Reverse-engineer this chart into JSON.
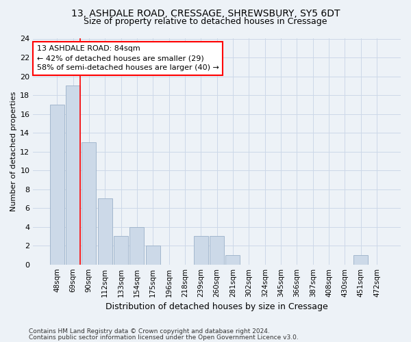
{
  "title1": "13, ASHDALE ROAD, CRESSAGE, SHREWSBURY, SY5 6DT",
  "title2": "Size of property relative to detached houses in Cressage",
  "xlabel": "Distribution of detached houses by size in Cressage",
  "ylabel": "Number of detached properties",
  "categories": [
    "48sqm",
    "69sqm",
    "90sqm",
    "112sqm",
    "133sqm",
    "154sqm",
    "175sqm",
    "196sqm",
    "218sqm",
    "239sqm",
    "260sqm",
    "281sqm",
    "302sqm",
    "324sqm",
    "345sqm",
    "366sqm",
    "387sqm",
    "408sqm",
    "430sqm",
    "451sqm",
    "472sqm"
  ],
  "values": [
    17,
    19,
    13,
    7,
    3,
    4,
    2,
    0,
    0,
    3,
    3,
    1,
    0,
    0,
    0,
    0,
    0,
    0,
    0,
    1,
    0
  ],
  "bar_color": "#ccd9e8",
  "bar_edge_color": "#9ab0c8",
  "annotation_line1": "13 ASHDALE ROAD: 84sqm",
  "annotation_line2": "← 42% of detached houses are smaller (29)",
  "annotation_line3": "58% of semi-detached houses are larger (40) →",
  "annotation_box_color": "white",
  "annotation_box_edge_color": "red",
  "ylim": [
    0,
    24
  ],
  "yticks": [
    0,
    2,
    4,
    6,
    8,
    10,
    12,
    14,
    16,
    18,
    20,
    22,
    24
  ],
  "grid_color": "#ccd8e8",
  "footer1": "Contains HM Land Registry data © Crown copyright and database right 2024.",
  "footer2": "Contains public sector information licensed under the Open Government Licence v3.0.",
  "bg_color": "#edf2f7"
}
